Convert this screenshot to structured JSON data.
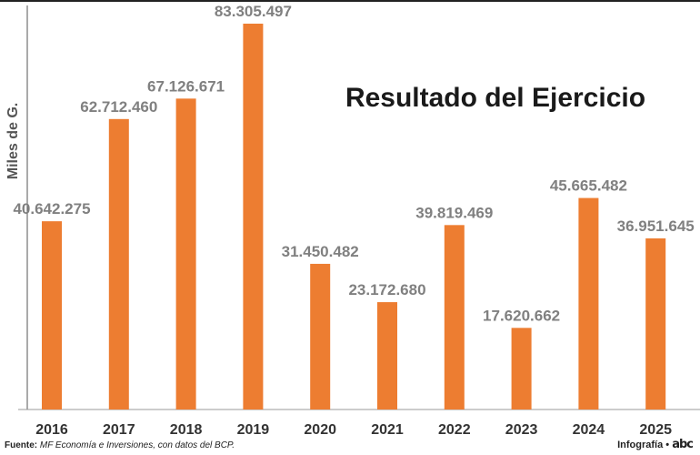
{
  "chart_data": {
    "type": "bar",
    "title": "Resultado del Ejercicio",
    "ylabel": "Miles de G.",
    "xlabel": "",
    "categories": [
      "2016",
      "2017",
      "2018",
      "2019",
      "2020",
      "2021",
      "2022",
      "2023",
      "2024",
      "2025"
    ],
    "values": [
      40642275,
      62712460,
      67126671,
      83305497,
      31450482,
      23172680,
      39819469,
      17620662,
      45665482,
      36951645
    ],
    "value_labels": [
      "40.642.275",
      "62.712.460",
      "67.126.671",
      "83.305.497",
      "31.450.482",
      "23.172.680",
      "39.819.469",
      "17.620.662",
      "45.665.482",
      "36.951.645"
    ],
    "ylim": [
      0,
      83305497
    ],
    "grid": false,
    "legend": "none",
    "bar_color": "#ED7D31"
  },
  "footer": {
    "source_prefix": "Fuente:",
    "source_text": "MF Economía e Inversiones, con  datos del BCP.",
    "credit": "Infografía •",
    "logo_text": "abc"
  }
}
